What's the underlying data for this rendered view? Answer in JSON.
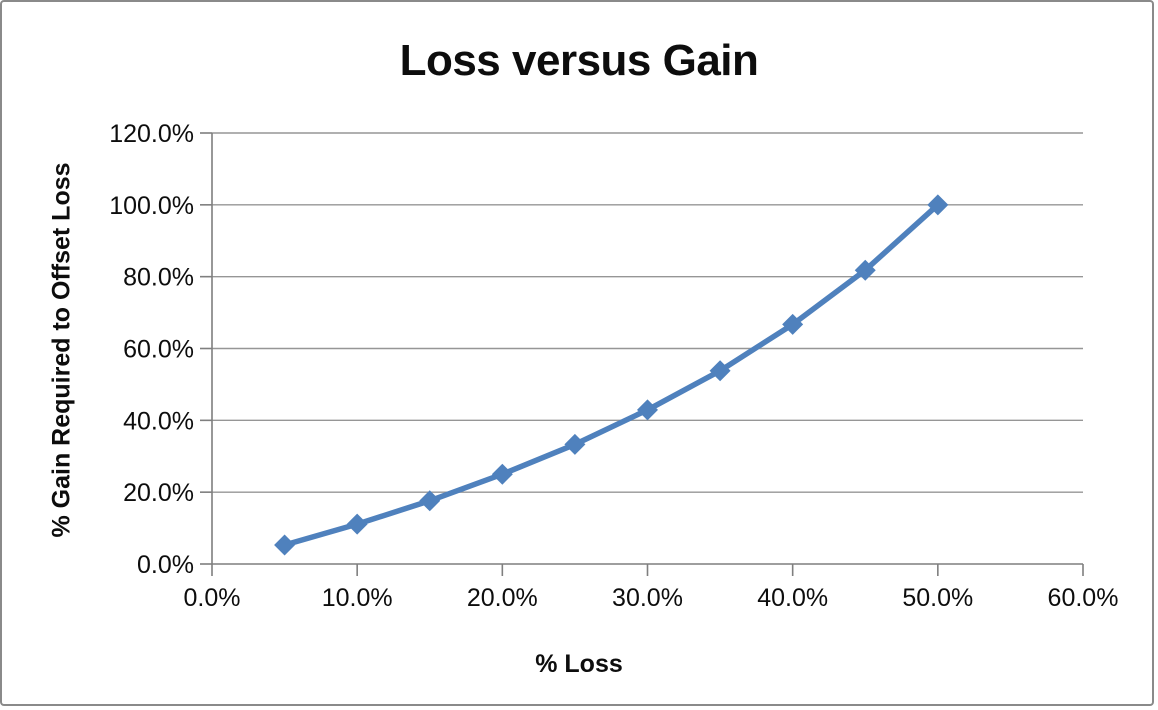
{
  "chart_data": {
    "type": "line",
    "title": "Loss versus Gain",
    "xlabel": "% Loss",
    "ylabel": "% Gain Required to Offset Loss",
    "x": [
      5,
      10,
      15,
      20,
      25,
      30,
      35,
      40,
      45,
      50
    ],
    "y": [
      5.3,
      11.1,
      17.6,
      25.0,
      33.3,
      42.9,
      53.8,
      66.7,
      81.8,
      100.0
    ],
    "xlim": [
      0,
      60
    ],
    "ylim": [
      0,
      120
    ],
    "x_tick_values": [
      0,
      10,
      20,
      30,
      40,
      50,
      60
    ],
    "x_ticks": [
      "0.0%",
      "10.0%",
      "20.0%",
      "30.0%",
      "40.0%",
      "50.0%",
      "60.0%"
    ],
    "y_tick_values": [
      0,
      20,
      40,
      60,
      80,
      100,
      120
    ],
    "y_ticks": [
      "0.0%",
      "20.0%",
      "40.0%",
      "60.0%",
      "80.0%",
      "100.0%",
      "120.0%"
    ],
    "grid": "horizontal-major",
    "legend": "none",
    "marker": "diamond",
    "line_color": "#4F81BD",
    "gridline_color": "#969696",
    "axis_color": "#7f7f7f",
    "text_color": "#0d0d0d"
  }
}
